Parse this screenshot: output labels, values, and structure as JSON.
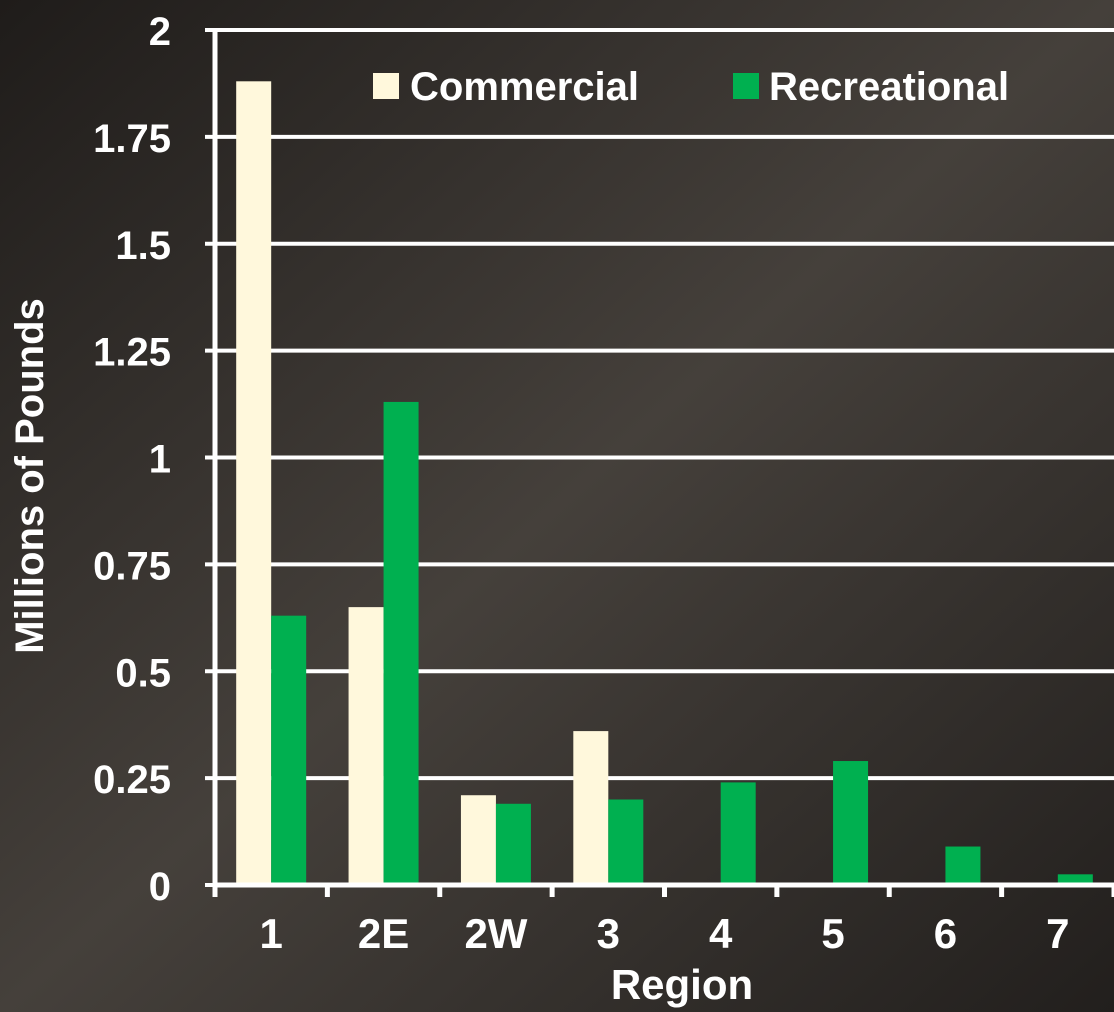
{
  "chart_data": {
    "type": "bar",
    "title": "",
    "xlabel": "Region",
    "ylabel": "Millions of Pounds",
    "categories": [
      "1",
      "2E",
      "2W",
      "3",
      "4",
      "5",
      "6",
      "7"
    ],
    "series": [
      {
        "name": "Commercial",
        "color": "#fff8dc",
        "values": [
          1.88,
          0.65,
          0.21,
          0.36,
          0,
          0,
          0,
          0
        ]
      },
      {
        "name": "Recreational",
        "color": "#00b050",
        "values": [
          0.63,
          1.13,
          0.19,
          0.2,
          0.24,
          0.29,
          0.09,
          0.025
        ]
      }
    ],
    "ylim": [
      0,
      2
    ],
    "yticks": [
      0,
      0.25,
      0.5,
      0.75,
      1,
      1.25,
      1.5,
      1.75,
      2
    ],
    "ytick_labels": [
      "0",
      "0.25",
      "0.5",
      "0.75",
      "1",
      "1.25",
      "1.5",
      "1.75",
      "2"
    ],
    "grid": true,
    "legend_position": "top-right"
  },
  "colors": {
    "background": "#2b2826",
    "axis": "#ffffff",
    "grid": "#ffffff",
    "text": "#ffffff"
  }
}
